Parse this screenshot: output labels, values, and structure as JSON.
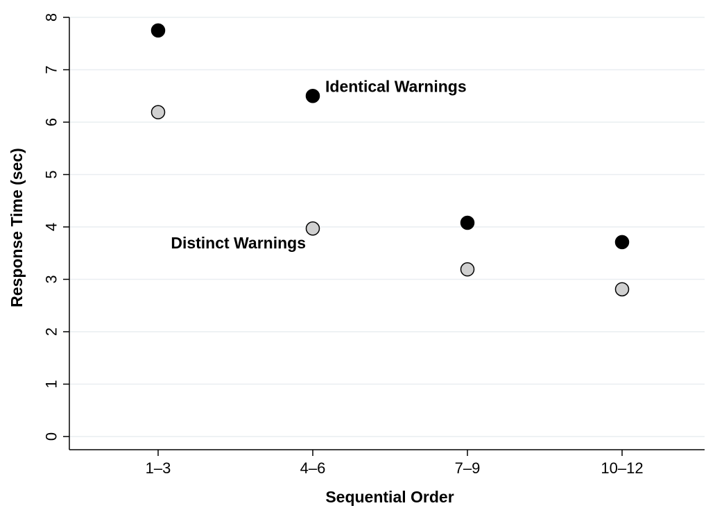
{
  "chart_data": {
    "type": "scatter",
    "categories": [
      "1–3",
      "4–6",
      "7–9",
      "10–12"
    ],
    "xlabel": "Sequential Order",
    "ylabel": "Response Time (sec)",
    "ylim": [
      0,
      8
    ],
    "yticks": [
      0,
      1,
      2,
      3,
      4,
      5,
      6,
      7,
      8
    ],
    "grid": true,
    "series": [
      {
        "name": "Identical Warnings",
        "color": "#000000",
        "values": [
          7.75,
          6.5,
          4.08,
          3.71
        ]
      },
      {
        "name": "Distinct Warnings",
        "color": "#d0d0d0",
        "values": [
          6.19,
          3.97,
          3.19,
          2.81
        ]
      }
    ]
  }
}
